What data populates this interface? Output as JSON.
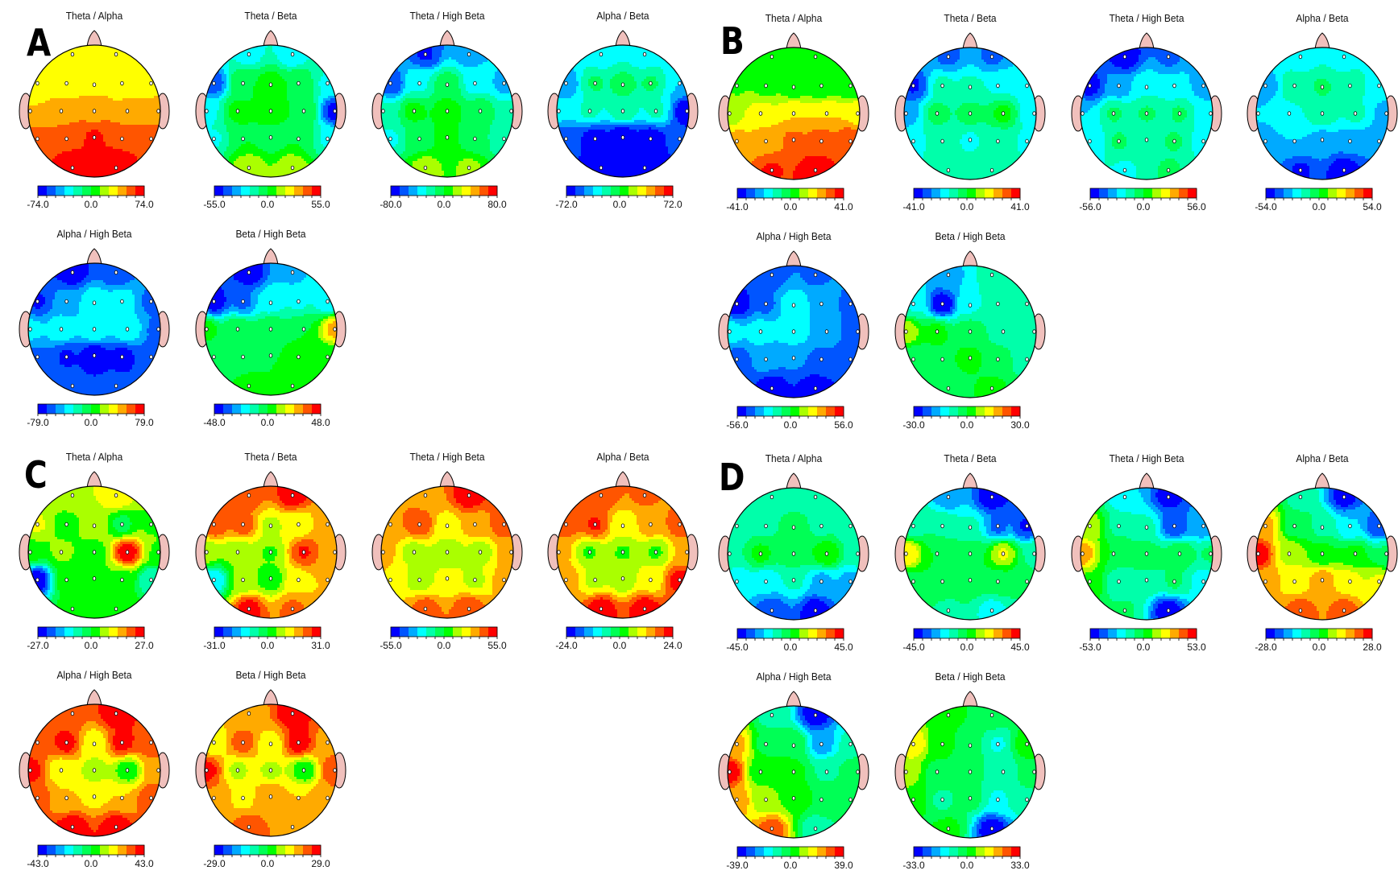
{
  "figure": {
    "colormap": [
      "#0000ff",
      "#0055ff",
      "#00aaff",
      "#00ffff",
      "#00ffaa",
      "#00ff55",
      "#00ff00",
      "#aaff00",
      "#ffff00",
      "#ffaa00",
      "#ff5500",
      "#ff0000"
    ],
    "head_colors": {
      "outline": "#000000",
      "ear_nose_fill": "#f0c0bc",
      "electrode_fill": "#ffffff"
    },
    "electrodes": [
      "Fp1",
      "Fp2",
      "F7",
      "F3",
      "Fz",
      "F4",
      "F8",
      "T3",
      "C3",
      "Cz",
      "C4",
      "T4",
      "T5",
      "P3",
      "Pz",
      "P4",
      "T6",
      "O1",
      "O2"
    ]
  },
  "chart_data": [
    {
      "panel": "A",
      "type": "heatmap",
      "maps": [
        {
          "title": "Theta / Alpha",
          "min": "-74.0",
          "mid": "0.0",
          "max": "74.0",
          "field": {
            "Fp1": 0.35,
            "Fp2": 0.35,
            "F7": 0.4,
            "F3": 0.4,
            "Fz": 0.45,
            "F4": 0.35,
            "F8": 0.4,
            "T3": 0.5,
            "C3": 0.55,
            "Cz": 0.62,
            "C4": 0.55,
            "T4": 0.6,
            "T5": 0.72,
            "P3": 0.8,
            "Pz": 0.85,
            "P4": 0.82,
            "T6": 0.75,
            "O1": 1.0,
            "O2": 1.0
          }
        },
        {
          "title": "Theta / Beta",
          "min": "-55.0",
          "mid": "0.0",
          "max": "55.0",
          "field": {
            "Fp1": -0.4,
            "Fp2": -0.45,
            "F7": -0.75,
            "F3": 0.0,
            "Fz": 0.1,
            "F4": 0.0,
            "F8": -0.35,
            "T3": -0.4,
            "C3": 0.05,
            "Cz": 0.1,
            "C4": 0.0,
            "T4": -0.9,
            "T5": -0.35,
            "P3": 0.0,
            "Pz": -0.1,
            "P4": 0.0,
            "T6": -0.35,
            "O1": 0.3,
            "O2": 0.3
          }
        },
        {
          "title": "Theta / High Beta",
          "min": "-80.0",
          "mid": "0.0",
          "max": "80.0",
          "field": {
            "Fp1": -0.85,
            "Fp2": -0.6,
            "F7": -0.8,
            "F3": -0.35,
            "Fz": -0.05,
            "F4": -0.4,
            "F8": -0.55,
            "T3": -0.3,
            "C3": 0.05,
            "Cz": 0.1,
            "C4": -0.05,
            "T4": -0.3,
            "T5": -0.35,
            "P3": -0.1,
            "Pz": 0.05,
            "P4": -0.1,
            "T6": -0.3,
            "O1": 0.25,
            "O2": 0.2
          }
        },
        {
          "title": "Alpha / Beta",
          "min": "-72.0",
          "mid": "0.0",
          "max": "72.0",
          "field": {
            "Fp1": -0.45,
            "Fp2": -0.45,
            "F7": -0.6,
            "F3": -0.15,
            "Fz": -0.1,
            "F4": -0.15,
            "F8": -0.5,
            "T3": -0.45,
            "C3": -0.3,
            "Cz": -0.2,
            "C4": -0.3,
            "T4": -0.95,
            "T5": -0.75,
            "P3": -0.95,
            "Pz": -1.0,
            "P4": -0.95,
            "T6": -0.8,
            "O1": -1.0,
            "O2": -1.0
          }
        },
        {
          "title": "Alpha / High Beta",
          "min": "-79.0",
          "mid": "0.0",
          "max": "79.0",
          "field": {
            "Fp1": -0.95,
            "Fp2": -0.8,
            "F7": -0.85,
            "F3": -0.6,
            "Fz": -0.35,
            "F4": -0.4,
            "F8": -0.7,
            "T3": -0.45,
            "C3": -0.35,
            "Cz": -0.35,
            "C4": -0.35,
            "T4": -0.7,
            "T5": -0.7,
            "P3": -0.85,
            "Pz": -0.95,
            "P4": -0.9,
            "T6": -0.75,
            "O1": -0.8,
            "O2": -0.8
          }
        },
        {
          "title": "Beta / High Beta",
          "min": "-48.0",
          "mid": "0.0",
          "max": "48.0",
          "field": {
            "Fp1": -0.95,
            "Fp2": -0.55,
            "F7": -0.95,
            "F3": -0.7,
            "Fz": -0.4,
            "F4": -0.35,
            "F8": -0.45,
            "T3": 0.05,
            "C3": 0.0,
            "Cz": 0.0,
            "C4": 0.0,
            "T4": 0.55,
            "T5": -0.1,
            "P3": -0.1,
            "Pz": 0.0,
            "P4": 0.05,
            "T6": 0.05,
            "O1": 0.05,
            "O2": 0.1
          }
        }
      ]
    },
    {
      "panel": "B",
      "type": "heatmap",
      "maps": [
        {
          "title": "Theta / Alpha",
          "min": "-41.0",
          "mid": "0.0",
          "max": "41.0",
          "field": {
            "Fp1": 0.05,
            "Fp2": 0.05,
            "F7": 0.15,
            "F3": 0.1,
            "Fz": 0.05,
            "F4": 0.0,
            "F8": 0.0,
            "T3": 0.25,
            "C3": 0.4,
            "Cz": 0.5,
            "C4": 0.5,
            "T4": 0.45,
            "T5": 0.55,
            "P3": 0.6,
            "Pz": 0.7,
            "P4": 0.75,
            "T6": 0.8,
            "O1": 0.85,
            "O2": 1.0
          }
        },
        {
          "title": "Theta / Beta",
          "min": "-41.0",
          "mid": "0.0",
          "max": "41.0",
          "field": {
            "Fp1": -0.7,
            "Fp2": -0.7,
            "F7": -0.85,
            "F3": -0.3,
            "Fz": -0.3,
            "F4": -0.35,
            "F8": -0.5,
            "T3": -0.6,
            "C3": -0.1,
            "Cz": -0.1,
            "C4": 0.05,
            "T4": -0.5,
            "T5": -0.35,
            "P3": -0.3,
            "Pz": -0.35,
            "P4": -0.25,
            "T6": -0.35,
            "O1": -0.3,
            "O2": -0.3
          }
        },
        {
          "title": "Theta / High Beta",
          "min": "-56.0",
          "mid": "0.0",
          "max": "56.0",
          "field": {
            "Fp1": -0.95,
            "Fp2": -0.7,
            "F7": -0.9,
            "F3": -0.6,
            "Fz": -0.35,
            "F4": -0.45,
            "F8": -0.55,
            "T3": -0.5,
            "C3": -0.15,
            "Cz": -0.15,
            "C4": -0.15,
            "T4": -0.5,
            "T5": -0.5,
            "P3": -0.15,
            "Pz": -0.3,
            "P4": -0.15,
            "T6": -0.4,
            "O1": -0.35,
            "O2": -0.15
          }
        },
        {
          "title": "Alpha / Beta",
          "min": "-54.0",
          "mid": "0.0",
          "max": "54.0",
          "field": {
            "Fp1": -0.45,
            "Fp2": -0.45,
            "F7": -0.6,
            "F3": -0.2,
            "Fz": -0.15,
            "F4": -0.2,
            "F8": -0.45,
            "T3": -0.5,
            "C3": -0.35,
            "Cz": -0.2,
            "C4": -0.3,
            "T4": -0.55,
            "T5": -0.55,
            "P3": -0.5,
            "Pz": -0.55,
            "P4": -0.6,
            "T6": -0.65,
            "O1": -0.85,
            "O2": -0.95
          }
        },
        {
          "title": "Alpha / High Beta",
          "min": "-56.0",
          "mid": "0.0",
          "max": "56.0",
          "field": {
            "Fp1": -0.75,
            "Fp2": -0.7,
            "F7": -0.95,
            "F3": -0.7,
            "Fz": -0.35,
            "F4": -0.55,
            "F8": -0.7,
            "T3": -0.4,
            "C3": -0.4,
            "Cz": -0.35,
            "C4": -0.6,
            "T4": -0.75,
            "T5": -0.75,
            "P3": -0.6,
            "Pz": -0.65,
            "P4": -0.7,
            "T6": -0.75,
            "O1": -0.95,
            "O2": -0.95
          }
        },
        {
          "title": "Beta / High Beta",
          "min": "-30.0",
          "mid": "0.0",
          "max": "30.0",
          "field": {
            "Fp1": -0.55,
            "Fp2": -0.3,
            "F7": -0.35,
            "F3": -0.95,
            "Fz": -0.35,
            "F4": -0.3,
            "F8": -0.3,
            "T3": 0.3,
            "C3": 0.05,
            "Cz": -0.05,
            "C4": -0.25,
            "T4": -0.3,
            "T5": -0.15,
            "P3": 0.0,
            "Pz": 0.05,
            "P4": -0.1,
            "T6": -0.25,
            "O1": -0.1,
            "O2": 0.05
          }
        }
      ]
    },
    {
      "panel": "C",
      "type": "heatmap",
      "maps": [
        {
          "title": "Theta / Alpha",
          "min": "-27.0",
          "mid": "0.0",
          "max": "27.0",
          "field": {
            "Fp1": 0.3,
            "Fp2": 0.5,
            "F7": 0.35,
            "F3": 0.1,
            "Fz": 0.25,
            "F4": -0.05,
            "F8": 0.15,
            "T3": 0.1,
            "C3": 0.2,
            "Cz": 0.1,
            "C4": 0.95,
            "T4": 0.15,
            "T5": -0.95,
            "P3": 0.1,
            "Pz": 0.05,
            "P4": 0.1,
            "T6": -0.3,
            "O1": 0.1,
            "O2": 0.15
          }
        },
        {
          "title": "Theta / Beta",
          "min": "-31.0",
          "mid": "0.0",
          "max": "31.0",
          "field": {
            "Fp1": 0.75,
            "Fp2": 0.95,
            "F7": 0.8,
            "F3": 0.75,
            "Fz": 0.3,
            "F4": 0.35,
            "F8": 0.6,
            "T3": 0.25,
            "C3": 0.2,
            "Cz": 0.15,
            "C4": 0.85,
            "T4": 0.55,
            "T5": -0.45,
            "P3": 0.2,
            "Pz": 0.05,
            "P4": 0.45,
            "T6": 0.5,
            "O1": 0.9,
            "O2": 0.7
          }
        },
        {
          "title": "Theta / High Beta",
          "min": "-55.0",
          "mid": "0.0",
          "max": "55.0",
          "field": {
            "Fp1": 0.6,
            "Fp2": 0.95,
            "F7": 0.65,
            "F3": 0.8,
            "Fz": 0.4,
            "F4": 0.6,
            "F8": 0.75,
            "T3": 0.55,
            "C3": 0.25,
            "Cz": 0.2,
            "C4": 0.25,
            "T4": 0.6,
            "T5": 0.5,
            "P3": 0.25,
            "Pz": 0.35,
            "P4": 0.3,
            "T6": 0.55,
            "O1": 0.75,
            "O2": 0.8
          }
        },
        {
          "title": "Alpha / Beta",
          "min": "-24.0",
          "mid": "0.0",
          "max": "24.0",
          "field": {
            "Fp1": 0.8,
            "Fp2": 0.7,
            "F7": 0.75,
            "F3": 0.85,
            "Fz": 0.35,
            "F4": 0.6,
            "F8": 0.75,
            "T3": 0.55,
            "C3": 0.15,
            "Cz": 0.15,
            "C4": 0.15,
            "T4": 0.55,
            "T5": 0.6,
            "P3": 0.3,
            "Pz": 0.2,
            "P4": 0.4,
            "T6": 0.9,
            "O1": 0.95,
            "O2": 0.95
          }
        },
        {
          "title": "Alpha / High Beta",
          "min": "-43.0",
          "mid": "0.0",
          "max": "43.0",
          "field": {
            "Fp1": 0.7,
            "Fp2": 0.95,
            "F7": 0.75,
            "F3": 0.9,
            "Fz": 0.35,
            "F4": 0.9,
            "F8": 0.8,
            "T3": 0.9,
            "C3": 0.35,
            "Cz": 0.25,
            "C4": 0.05,
            "T4": 0.6,
            "T5": 0.75,
            "P3": 0.5,
            "Pz": 0.45,
            "P4": 0.5,
            "T6": 0.8,
            "O1": 0.95,
            "O2": 0.95
          }
        },
        {
          "title": "Beta / High Beta",
          "min": "-29.0",
          "mid": "0.0",
          "max": "29.0",
          "field": {
            "Fp1": 0.55,
            "Fp2": 0.95,
            "F7": 0.35,
            "F3": 0.75,
            "Fz": 0.4,
            "F4": 0.95,
            "F8": 0.6,
            "T3": 0.9,
            "C3": 0.3,
            "Cz": 0.3,
            "C4": 0.05,
            "T4": 0.8,
            "T5": 0.65,
            "P3": 0.45,
            "Pz": 0.65,
            "P4": 0.5,
            "T6": 0.65,
            "O1": 0.75,
            "O2": 0.65
          }
        }
      ]
    },
    {
      "panel": "D",
      "type": "heatmap",
      "maps": [
        {
          "title": "Theta / Alpha",
          "min": "-45.0",
          "mid": "0.0",
          "max": "45.0",
          "field": {
            "Fp1": -0.3,
            "Fp2": -0.3,
            "F7": -0.3,
            "F3": -0.2,
            "Fz": -0.1,
            "F4": -0.2,
            "F8": -0.3,
            "T3": -0.2,
            "C3": 0.05,
            "Cz": 0.0,
            "C4": 0.15,
            "T4": -0.25,
            "T5": -0.45,
            "P3": -0.45,
            "Pz": -0.3,
            "P4": -0.55,
            "T6": -0.55,
            "O1": -0.8,
            "O2": -0.95
          }
        },
        {
          "title": "Theta / Beta",
          "min": "-45.0",
          "mid": "0.0",
          "max": "45.0",
          "field": {
            "Fp1": -0.6,
            "Fp2": -0.95,
            "F7": -0.25,
            "F3": -0.2,
            "Fz": -0.3,
            "F4": -0.7,
            "F8": -0.85,
            "T3": 0.5,
            "C3": 0.0,
            "Cz": 0.0,
            "C4": 0.35,
            "T4": -0.2,
            "T5": -0.05,
            "P3": -0.05,
            "Pz": -0.05,
            "P4": -0.05,
            "T6": -0.15,
            "O1": -0.2,
            "O2": -0.4
          }
        },
        {
          "title": "Theta / High Beta",
          "min": "-53.0",
          "mid": "0.0",
          "max": "53.0",
          "field": {
            "Fp1": -0.5,
            "Fp2": -0.9,
            "F7": 0.25,
            "F3": -0.2,
            "Fz": -0.3,
            "F4": -0.8,
            "F8": -0.6,
            "T3": 0.6,
            "C3": 0.0,
            "Cz": -0.05,
            "C4": 0.0,
            "T4": -0.15,
            "T5": 0.15,
            "P3": -0.3,
            "Pz": -0.2,
            "P4": -0.15,
            "T6": -0.4,
            "O1": -0.15,
            "O2": -0.95
          }
        },
        {
          "title": "Alpha / Beta",
          "min": "-28.0",
          "mid": "0.0",
          "max": "28.0",
          "field": {
            "Fp1": -0.25,
            "Fp2": -0.9,
            "F7": 0.55,
            "F3": -0.1,
            "Fz": -0.2,
            "F4": -0.5,
            "F8": -0.8,
            "T3": 0.95,
            "C3": 0.3,
            "Cz": 0.05,
            "C4": 0.05,
            "T4": -0.15,
            "T5": 0.6,
            "P3": 0.4,
            "Pz": 0.6,
            "P4": 0.4,
            "T6": 0.35,
            "O1": 0.75,
            "O2": 0.75
          }
        },
        {
          "title": "Alpha / High Beta",
          "min": "-39.0",
          "mid": "0.0",
          "max": "39.0",
          "field": {
            "Fp1": -0.25,
            "Fp2": -0.95,
            "F7": 0.55,
            "F3": -0.05,
            "Fz": 0.0,
            "F4": -0.6,
            "F8": -0.3,
            "T3": 0.95,
            "C3": 0.05,
            "Cz": 0.05,
            "C4": -0.2,
            "T4": 0.0,
            "T5": 0.6,
            "P3": 0.2,
            "Pz": 0.1,
            "P4": 0.0,
            "T6": -0.05,
            "O1": 0.75,
            "O2": -0.3
          }
        },
        {
          "title": "Beta / High Beta",
          "min": "-33.0",
          "mid": "0.0",
          "max": "33.0",
          "field": {
            "Fp1": 0.05,
            "Fp2": -0.05,
            "F7": 0.45,
            "F3": 0.05,
            "Fz": -0.1,
            "F4": -0.35,
            "F8": 0.1,
            "T3": 0.3,
            "C3": -0.05,
            "Cz": -0.1,
            "C4": -0.3,
            "T4": 0.0,
            "T5": 0.1,
            "P3": -0.2,
            "Pz": -0.1,
            "P4": -0.35,
            "T6": -0.2,
            "O1": 0.05,
            "O2": -0.95
          }
        }
      ]
    }
  ]
}
